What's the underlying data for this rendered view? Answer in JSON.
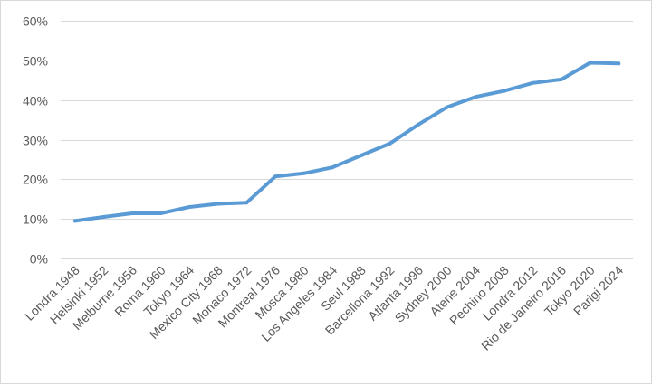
{
  "chart_data": {
    "type": "line",
    "title": "",
    "xlabel": "",
    "ylabel": "",
    "categories": [
      "Londra 1948",
      "Helsinki 1952",
      "Melburne 1956",
      "Roma 1960",
      "Tokyo 1964",
      "Mexico City 1968",
      "Monaco 1972",
      "Montreal 1976",
      "Mosca 1980",
      "Los Angeles 1984",
      "Seul 1988",
      "Barcellona 1992",
      "Atlanta 1996",
      "Sydney 2000",
      "Atene 2004",
      "Pechino 2008",
      "Londra 2012",
      "Rio de Janeiro 2016",
      "Tokyo 2020",
      "Parigi 2024"
    ],
    "series": [
      {
        "values": [
          9.5,
          10.5,
          11.4,
          11.4,
          13.0,
          13.8,
          14.1,
          20.7,
          21.5,
          23.0,
          26.0,
          29.0,
          33.8,
          38.2,
          40.8,
          42.3,
          44.3,
          45.2,
          49.4,
          49.2
        ],
        "color": "#5B9BD5"
      }
    ],
    "ylim": [
      0,
      60
    ],
    "y_ticks": [
      "0%",
      "10%",
      "20%",
      "30%",
      "40%",
      "50%",
      "60%"
    ],
    "y_tick_values": [
      0,
      10,
      20,
      30,
      40,
      50,
      60
    ],
    "grid": true,
    "legend": "none",
    "gridline_color": "#d9d9d9",
    "axis_color": "#d9d9d9"
  }
}
